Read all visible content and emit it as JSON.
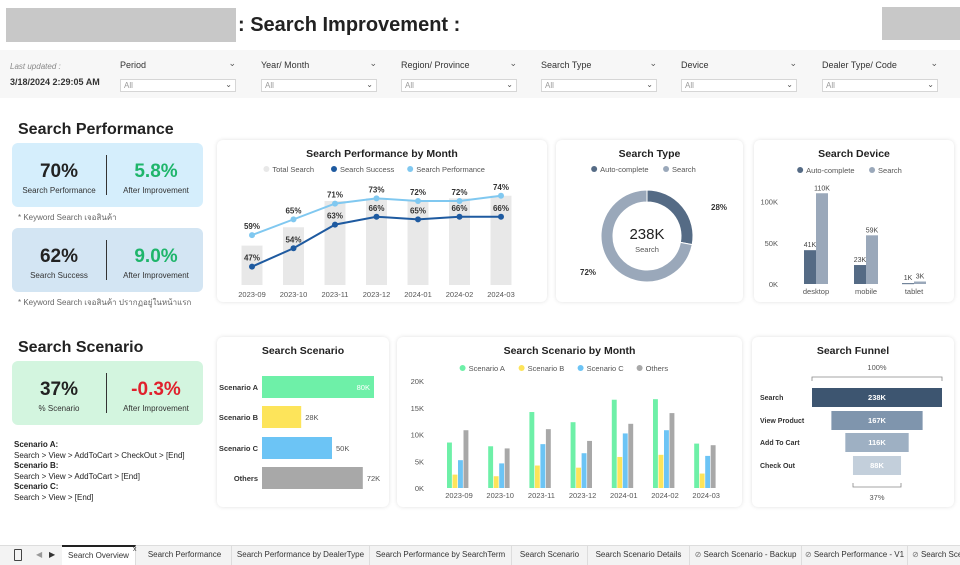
{
  "header": {
    "title": ": Search Improvement :",
    "last_updated_label": "Last updated :",
    "last_updated_value": "3/18/2024 2:29:05 AM"
  },
  "filters": [
    {
      "label": "Period",
      "value": "All"
    },
    {
      "label": "Year/ Month",
      "value": "All"
    },
    {
      "label": "Region/ Province",
      "value": "All"
    },
    {
      "label": "Search Type",
      "value": "All"
    },
    {
      "label": "Device",
      "value": "All"
    },
    {
      "label": "Dealer Type/ Code",
      "value": "All"
    }
  ],
  "search_performance": {
    "heading": "Search Performance",
    "kpi1": {
      "value": "70%",
      "label": "Search Performance",
      "improve_value": "5.8%",
      "improve_label": "After Improvement"
    },
    "note1": "* Keyword Search เจอสินค้า",
    "kpi2": {
      "value": "62%",
      "label": "Search Success",
      "improve_value": "9.0%",
      "improve_label": "After Improvement"
    },
    "note2": "* Keyword Search เจอสินค้า ปรากฏอยู่ในหน้าแรก"
  },
  "search_scenario": {
    "heading": "Search Scenario",
    "kpi": {
      "value": "37%",
      "label": "% Scenario",
      "improve_value": "-0.3%",
      "improve_label": "After Improvement"
    },
    "definitions": [
      {
        "name": "Scenario A:",
        "path": "Search > View > AddToCart > CheckOut > [End]"
      },
      {
        "name": "Scenario B:",
        "path": "Search > View > AddToCart > [End]"
      },
      {
        "name": "Scenario C:",
        "path": "Search > View > [End]"
      }
    ]
  },
  "colors": {
    "good": "#1fb56b",
    "bad": "#e0202c",
    "kpi_blue": "#d5eefc",
    "kpi_blue2": "#d3e5f3",
    "kpi_green": "#d3f5df",
    "navy": "#1e5aa0",
    "light_blue": "#80c8f0",
    "gray_bar": "#e8e8e8"
  },
  "chart_data": [
    {
      "id": "perf_month",
      "type": "line",
      "title": "Search Performance by Month",
      "categories": [
        "2023-09",
        "2023-10",
        "2023-11",
        "2023-12",
        "2024-01",
        "2024-02",
        "2024-03"
      ],
      "series": [
        {
          "name": "Total Search",
          "type": "bar",
          "color": "#e8e8e8",
          "values": [
            55,
            62,
            72,
            73,
            72,
            73,
            74
          ]
        },
        {
          "name": "Search Success",
          "type": "line",
          "color": "#1e5aa0",
          "values": [
            47,
            54,
            63,
            66,
            65,
            66,
            66
          ],
          "labels": [
            "47%",
            "54%",
            "63%",
            "66%",
            "65%",
            "66%",
            "66%"
          ]
        },
        {
          "name": "Search Performance",
          "type": "line",
          "color": "#80c8f0",
          "values": [
            59,
            65,
            71,
            73,
            72,
            72,
            74
          ],
          "labels": [
            "59%",
            "65%",
            "71%",
            "73%",
            "72%",
            "72%",
            "74%"
          ]
        }
      ],
      "legend_position": "top"
    },
    {
      "id": "search_type",
      "type": "pie",
      "title": "Search Type",
      "center_value": "238K",
      "center_label": "Search",
      "slices": [
        {
          "name": "Auto-complete",
          "value": 28,
          "label": "28%",
          "color": "#556b85"
        },
        {
          "name": "Search",
          "value": 72,
          "label": "72%",
          "color": "#9aa8ba"
        }
      ]
    },
    {
      "id": "search_device",
      "type": "bar",
      "title": "Search Device",
      "categories": [
        "desktop",
        "mobile",
        "tablet"
      ],
      "series": [
        {
          "name": "Auto-complete",
          "color": "#556b85",
          "values": [
            41,
            23,
            1
          ],
          "labels": [
            "41K",
            "23K",
            "1K"
          ]
        },
        {
          "name": "Search",
          "color": "#9aa8ba",
          "values": [
            110,
            59,
            3
          ],
          "labels": [
            "110K",
            "59K",
            "3K"
          ]
        }
      ],
      "yticks": [
        "0K",
        "50K",
        "100K"
      ],
      "ylim": [
        0,
        120
      ]
    },
    {
      "id": "scenario_bar",
      "type": "bar",
      "orientation": "horizontal",
      "title": "Search Scenario",
      "categories": [
        "Scenario A",
        "Scenario B",
        "Scenario C",
        "Others"
      ],
      "values": [
        80,
        28,
        50,
        72
      ],
      "labels": [
        "80K",
        "28K",
        "50K",
        "72K"
      ],
      "colors": [
        "#6ef0a8",
        "#fde45a",
        "#6cc4f5",
        "#a8a8a8"
      ]
    },
    {
      "id": "scenario_month",
      "type": "bar",
      "title": "Search Scenario by Month",
      "categories": [
        "2023-09",
        "2023-10",
        "2023-11",
        "2023-12",
        "2024-01",
        "2024-02",
        "2024-03"
      ],
      "series": [
        {
          "name": "Scenario A",
          "color": "#6ef0a8",
          "values": [
            8.5,
            7.8,
            14.2,
            12.3,
            16.5,
            16.6,
            8.3
          ]
        },
        {
          "name": "Scenario B",
          "color": "#fde45a",
          "values": [
            2.5,
            2.2,
            4.2,
            3.8,
            5.8,
            6.2,
            2.7
          ]
        },
        {
          "name": "Scenario C",
          "color": "#6cc4f5",
          "values": [
            5.2,
            4.6,
            8.2,
            6.5,
            10.2,
            10.8,
            6.0
          ]
        },
        {
          "name": "Others",
          "color": "#a8a8a8",
          "values": [
            10.8,
            7.4,
            11.0,
            8.8,
            12.0,
            14.0,
            8.0
          ]
        }
      ],
      "yticks": [
        "0K",
        "5K",
        "10K",
        "15K",
        "20K"
      ],
      "ylim": [
        0,
        20
      ]
    },
    {
      "id": "funnel",
      "type": "bar",
      "title": "Search Funnel",
      "categories": [
        "Search",
        "View Product",
        "Add To Cart",
        "Check Out"
      ],
      "values": [
        238,
        167,
        116,
        88
      ],
      "labels": [
        "238K",
        "167K",
        "116K",
        "88K"
      ],
      "colors": [
        "#3d5570",
        "#7f95ad",
        "#9eb0c3",
        "#c3cfdb"
      ],
      "top_label": "100%",
      "bottom_label": "37%"
    }
  ],
  "tabs": [
    {
      "label": "Search Overview",
      "active": true
    },
    {
      "label": "Search Performance"
    },
    {
      "label": "Search Performance by DealerType"
    },
    {
      "label": "Search Performance by SearchTerm"
    },
    {
      "label": "Search Scenario"
    },
    {
      "label": "Search Scenario Details"
    },
    {
      "label": "Search Scenario - Backup"
    },
    {
      "label": "Search Performance - V1"
    },
    {
      "label": "Search Scena"
    }
  ],
  "tab_close": "x"
}
